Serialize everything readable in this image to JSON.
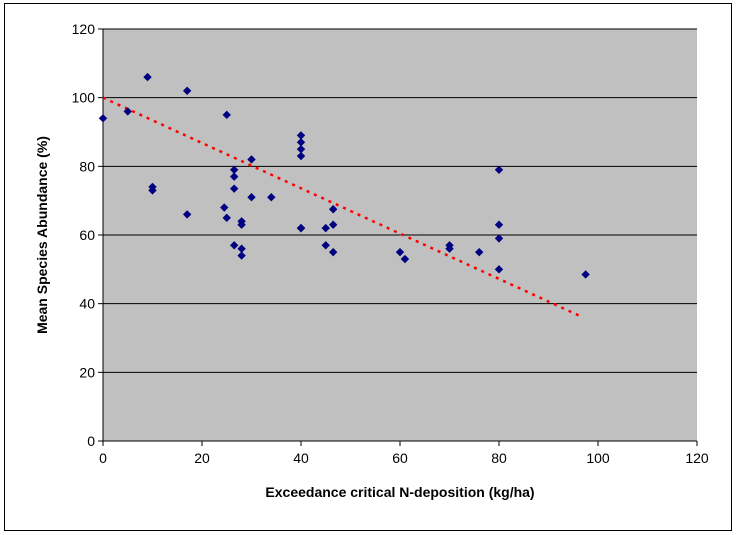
{
  "chart_data": {
    "type": "scatter",
    "title": "",
    "xlabel": "Exceedance critical N-deposition (kg/ha)",
    "ylabel": "Mean Species Abundance (%)",
    "xlim": [
      0,
      120
    ],
    "ylim": [
      0,
      120
    ],
    "xticks": [
      "0",
      "20",
      "40",
      "60",
      "80",
      "100",
      "120"
    ],
    "yticks": [
      "0",
      "20",
      "40",
      "60",
      "80",
      "100",
      "120"
    ],
    "grid": "horizontal",
    "legend": "none",
    "colors": {
      "plot_background": "#c0c0c0",
      "marker": "#000080",
      "trendline": "#ff0000"
    },
    "series": [
      {
        "marker": "diamond",
        "points": [
          [
            0,
            94
          ],
          [
            5,
            96
          ],
          [
            9,
            106
          ],
          [
            10,
            74
          ],
          [
            10,
            73
          ],
          [
            17,
            102
          ],
          [
            17,
            66
          ],
          [
            24.5,
            68
          ],
          [
            25,
            95
          ],
          [
            25,
            65
          ],
          [
            26.5,
            79
          ],
          [
            26.5,
            77
          ],
          [
            26.5,
            73.5
          ],
          [
            26.5,
            57
          ],
          [
            28,
            64
          ],
          [
            28,
            63
          ],
          [
            28,
            56
          ],
          [
            28,
            54
          ],
          [
            30,
            82
          ],
          [
            30,
            71
          ],
          [
            34,
            71
          ],
          [
            40,
            89
          ],
          [
            40,
            87
          ],
          [
            40,
            85
          ],
          [
            40,
            83
          ],
          [
            40,
            62
          ],
          [
            40,
            62
          ],
          [
            45,
            62
          ],
          [
            45,
            57
          ],
          [
            46.5,
            67.5
          ],
          [
            46.5,
            63
          ],
          [
            46.5,
            55
          ],
          [
            60,
            55
          ],
          [
            61,
            53
          ],
          [
            70,
            57
          ],
          [
            70,
            56
          ],
          [
            76,
            55
          ],
          [
            80,
            79
          ],
          [
            80,
            63
          ],
          [
            80,
            59
          ],
          [
            80,
            50
          ],
          [
            97.5,
            48.5
          ]
        ]
      }
    ],
    "trendline": {
      "style": "dotted",
      "x": [
        0,
        97
      ],
      "y": [
        100,
        36
      ]
    }
  }
}
